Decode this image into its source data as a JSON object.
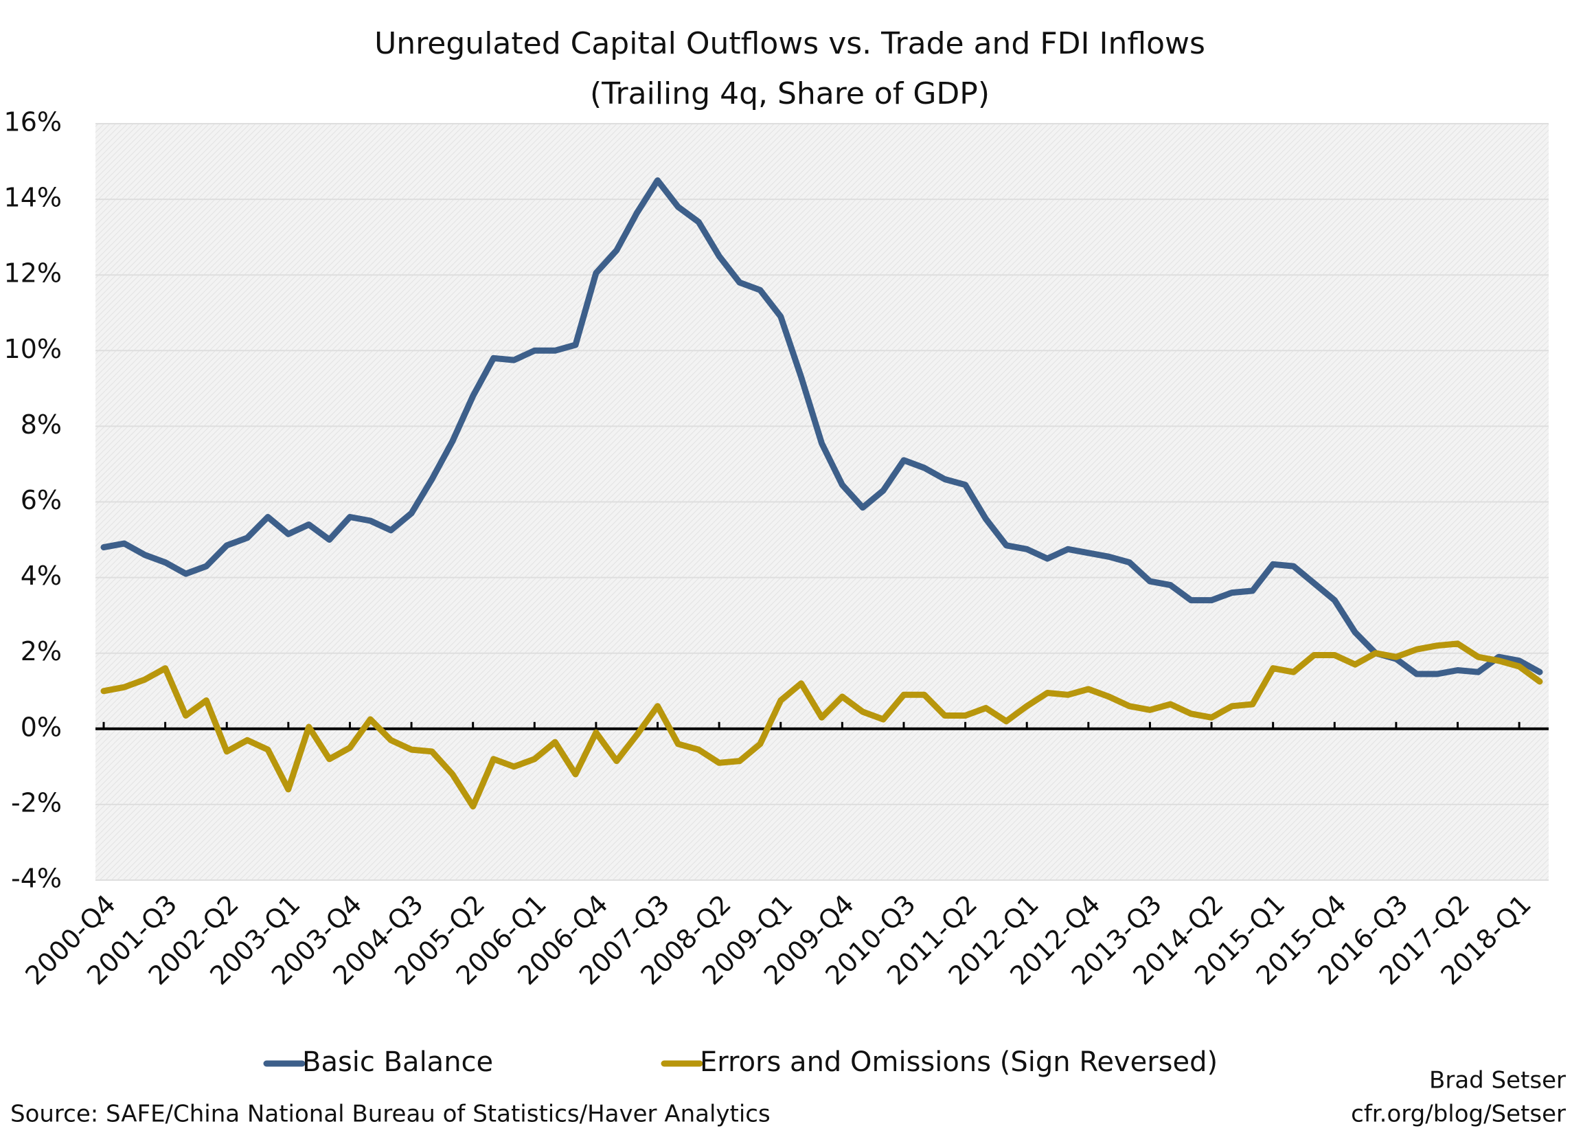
{
  "chart_data": {
    "type": "line",
    "title": [
      "Unregulated Capital Outflows vs. Trade and FDI Inflows",
      "(Trailing 4q, Share of GDP)"
    ],
    "categories": [
      "2000-Q4",
      null,
      null,
      "2001-Q3",
      null,
      null,
      "2002-Q2",
      null,
      null,
      "2003-Q1",
      null,
      null,
      "2003-Q4",
      null,
      null,
      "2004-Q3",
      null,
      null,
      "2005-Q2",
      null,
      null,
      "2006-Q1",
      null,
      null,
      "2006-Q4",
      null,
      null,
      "2007-Q3",
      null,
      null,
      "2008-Q2",
      null,
      null,
      "2009-Q1",
      null,
      null,
      "2009-Q4",
      null,
      null,
      "2010-Q3",
      null,
      null,
      "2011-Q2",
      null,
      null,
      "2012-Q1",
      null,
      null,
      "2012-Q4",
      null,
      null,
      "2013-Q3",
      null,
      null,
      "2014-Q2",
      null,
      null,
      "2015-Q1",
      null,
      null,
      "2015-Q4",
      null,
      null,
      "2016-Q3",
      null,
      null,
      "2017-Q2",
      null,
      null,
      "2018-Q1",
      null
    ],
    "series": [
      {
        "name": "Basic Balance",
        "color": "#3d5f8a",
        "values": [
          4.8,
          4.9,
          4.6,
          4.4,
          4.1,
          4.3,
          4.85,
          5.05,
          5.6,
          5.15,
          5.4,
          5.0,
          5.6,
          5.5,
          5.25,
          5.7,
          6.6,
          7.6,
          8.8,
          9.8,
          9.75,
          10.0,
          10.0,
          10.15,
          12.05,
          12.65,
          13.65,
          14.5,
          13.8,
          13.4,
          12.5,
          11.8,
          11.6,
          10.9,
          9.3,
          7.55,
          6.45,
          5.85,
          6.3,
          7.1,
          6.9,
          6.6,
          6.45,
          5.55,
          4.85,
          4.75,
          4.5,
          4.75,
          4.65,
          4.55,
          4.4,
          3.9,
          3.8,
          3.4,
          3.4,
          3.6,
          3.65,
          4.35,
          4.3,
          3.85,
          3.4,
          2.55,
          2.0,
          1.85,
          1.45,
          1.45,
          1.55,
          1.5,
          1.9,
          1.8,
          1.5
        ]
      },
      {
        "name": "Errors and Omissions (Sign Reversed)",
        "color": "#b8960c",
        "values": [
          1.0,
          1.1,
          1.3,
          1.6,
          0.35,
          0.75,
          -0.6,
          -0.3,
          -0.55,
          -1.6,
          0.05,
          -0.8,
          -0.5,
          0.25,
          -0.3,
          -0.55,
          -0.6,
          -1.2,
          -2.05,
          -0.8,
          -1.0,
          -0.8,
          -0.35,
          -1.2,
          -0.1,
          -0.85,
          -0.15,
          0.6,
          -0.4,
          -0.55,
          -0.9,
          -0.85,
          -0.4,
          0.75,
          1.2,
          0.3,
          0.85,
          0.45,
          0.25,
          0.9,
          0.9,
          0.35,
          0.35,
          0.55,
          0.2,
          0.6,
          0.95,
          0.9,
          1.05,
          0.85,
          0.6,
          0.5,
          0.65,
          0.4,
          0.3,
          0.6,
          0.65,
          1.6,
          1.5,
          1.95,
          1.95,
          1.7,
          2.0,
          1.9,
          2.1,
          2.2,
          2.25,
          1.9,
          1.8,
          1.65,
          1.25
        ]
      }
    ],
    "ylim": [
      -4,
      16
    ],
    "yticks": [
      {
        "value": -4,
        "label": "-4%"
      },
      {
        "value": -2,
        "label": "-2%"
      },
      {
        "value": 0,
        "label": "0%"
      },
      {
        "value": 2,
        "label": "2%"
      },
      {
        "value": 4,
        "label": "4%"
      },
      {
        "value": 6,
        "label": "6%"
      },
      {
        "value": 8,
        "label": "8%"
      },
      {
        "value": 10,
        "label": "10%"
      },
      {
        "value": 12,
        "label": "12%"
      },
      {
        "value": 14,
        "label": "14%"
      },
      {
        "value": 16,
        "label": "16%"
      }
    ],
    "grid": true,
    "legend": "bottom",
    "source": "Source: SAFE/China National Bureau of Statistics/Haver Analytics",
    "credit": [
      "Brad Setser",
      "cfr.org/blog/Setser"
    ]
  }
}
